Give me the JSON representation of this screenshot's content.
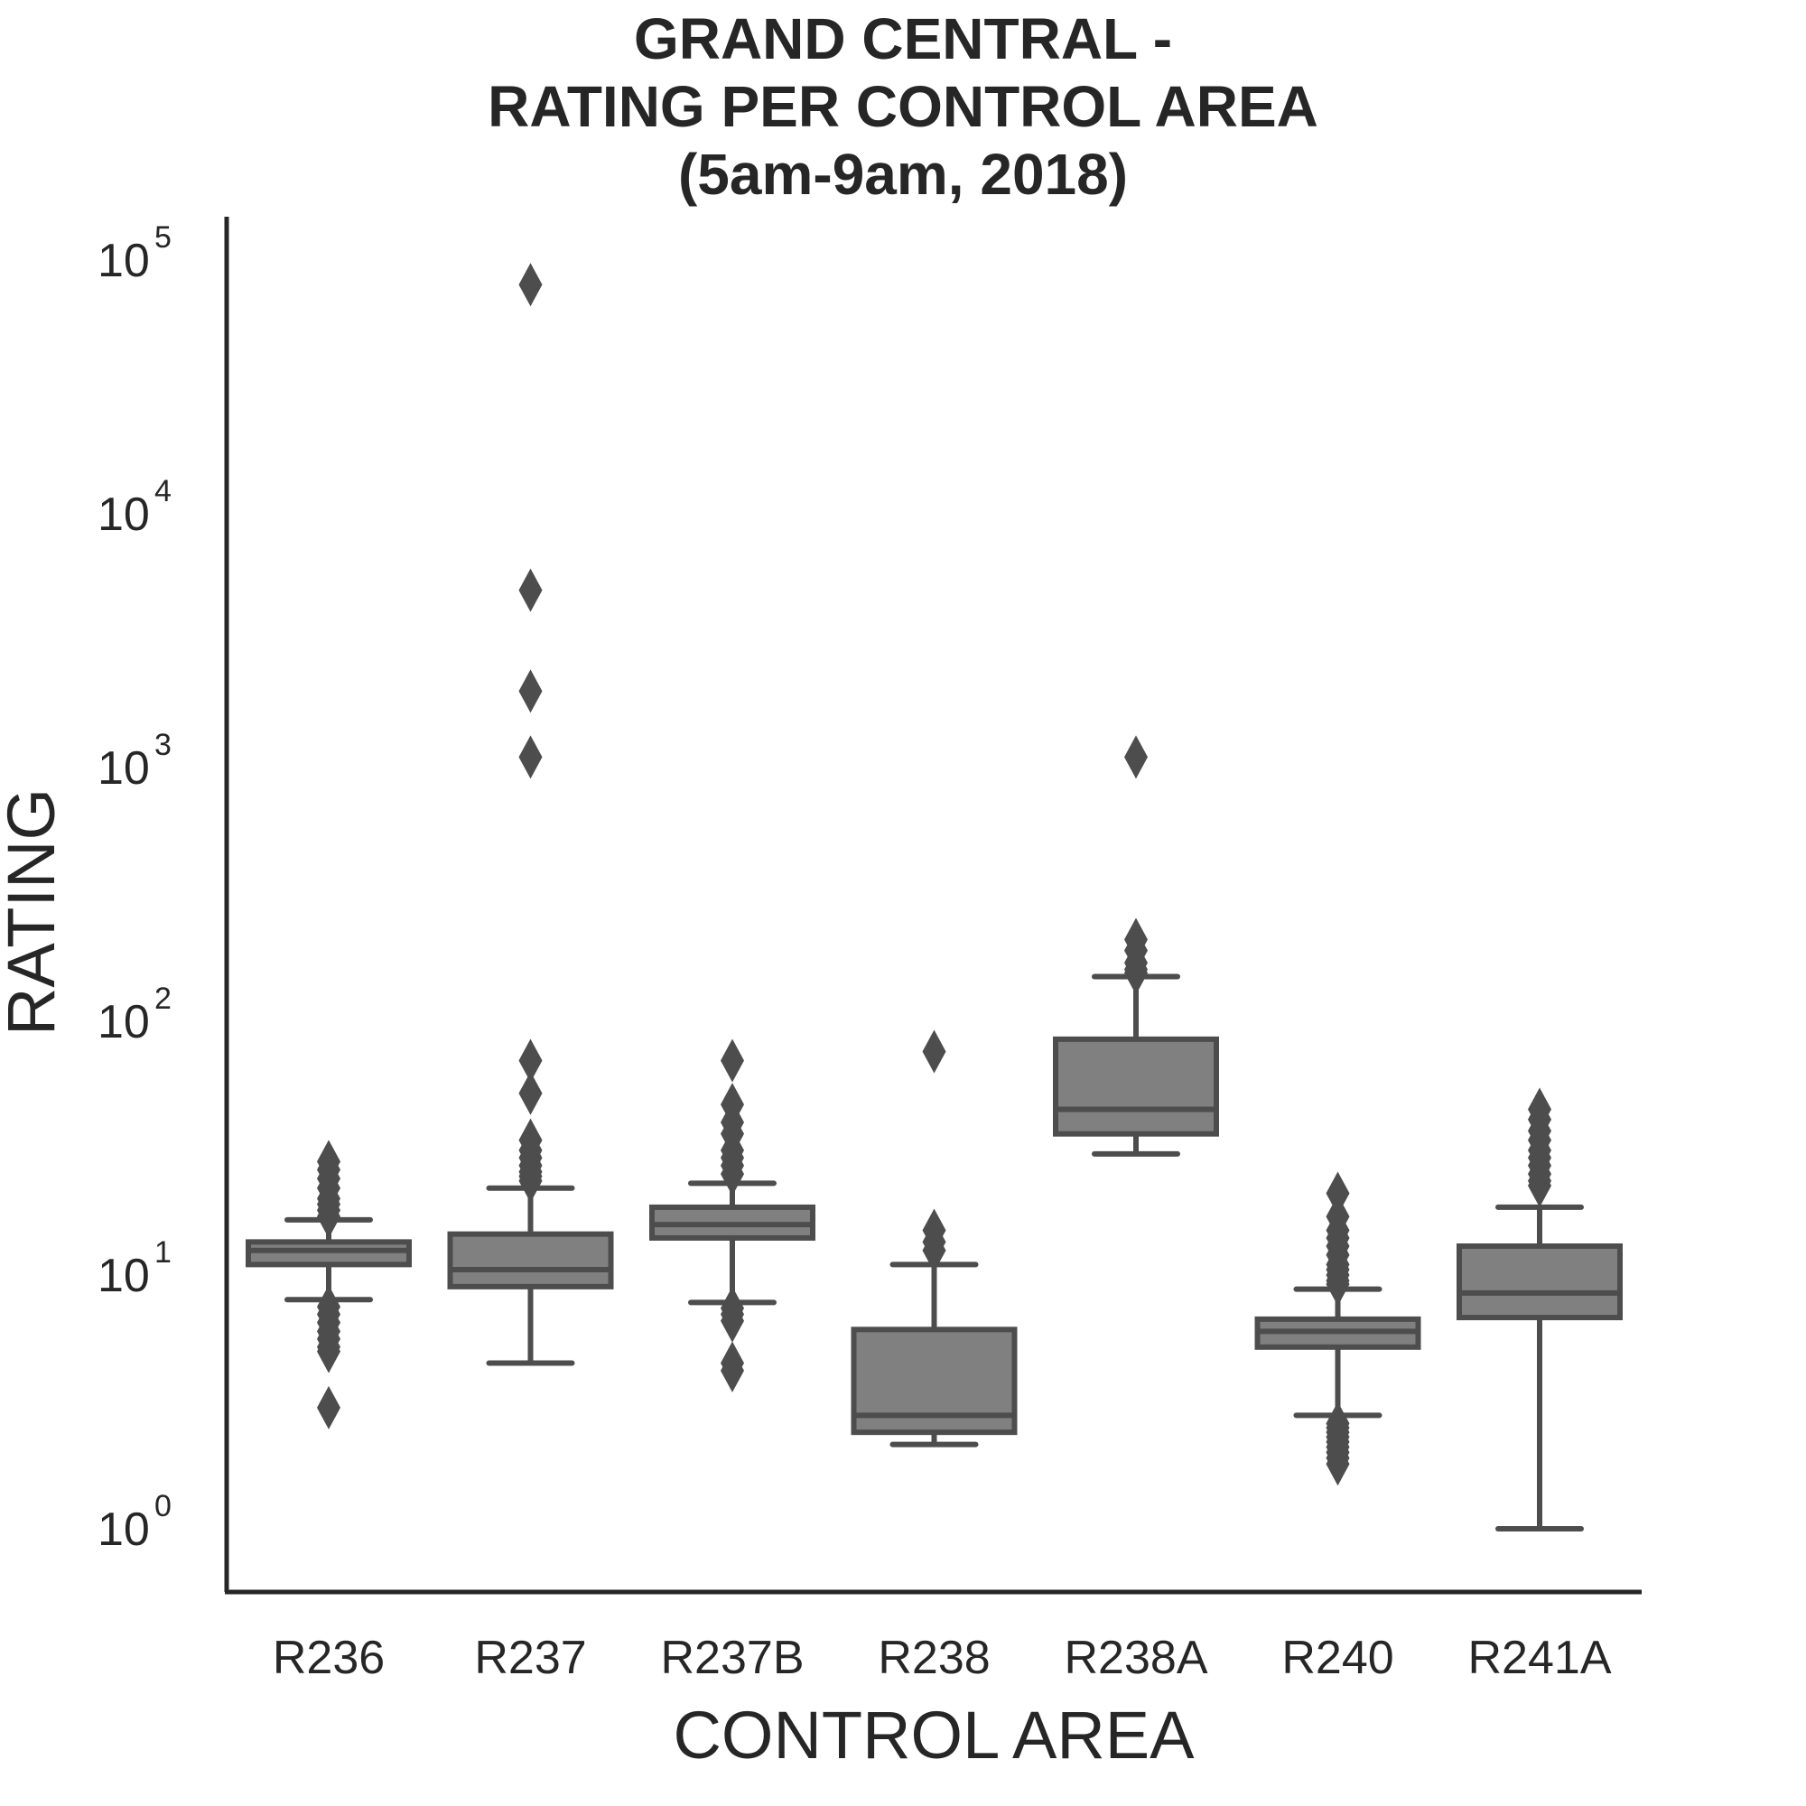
{
  "chart_data": {
    "type": "box",
    "title_lines": [
      "GRAND CENTRAL -",
      "RATING PER CONTROL AREA",
      "(5am-9am, 2018)"
    ],
    "xlabel": "CONTROL AREA",
    "ylabel": "RATING",
    "yscale": "log",
    "ylim": [
      0.55,
      140000
    ],
    "y_ticks": [
      {
        "value": 1,
        "base": "10",
        "exp": "0"
      },
      {
        "value": 10,
        "base": "10",
        "exp": "1"
      },
      {
        "value": 100,
        "base": "10",
        "exp": "2"
      },
      {
        "value": 1000,
        "base": "10",
        "exp": "3"
      },
      {
        "value": 10000,
        "base": "10",
        "exp": "4"
      },
      {
        "value": 100000,
        "base": "10",
        "exp": "5"
      }
    ],
    "grid": false,
    "box_color": "#808080",
    "line_color": "#4d4d4d",
    "categories": [
      "R236",
      "R237",
      "R237B",
      "R238",
      "R238A",
      "R240",
      "R241A"
    ],
    "boxes": [
      {
        "name": "R236",
        "whisker_low": 8.0,
        "q1": 11.0,
        "median": 12.5,
        "q3": 13.5,
        "whisker_high": 16.5,
        "outliers": [
          28,
          26,
          24,
          22,
          20,
          19,
          18,
          17,
          7.5,
          7,
          6.5,
          6,
          5.6,
          5.2,
          5.0,
          3.0
        ]
      },
      {
        "name": "R237",
        "whisker_low": 4.5,
        "q1": 9.0,
        "median": 10.5,
        "q3": 14.5,
        "whisker_high": 22,
        "outliers": [
          80000,
          5000,
          2000,
          1100,
          70,
          52,
          34,
          31,
          29,
          27,
          25.5,
          24.5,
          23.5
        ]
      },
      {
        "name": "R237B",
        "whisker_low": 7.8,
        "q1": 14.0,
        "median": 15.8,
        "q3": 18.5,
        "whisker_high": 23,
        "outliers": [
          70,
          47,
          40,
          36,
          31,
          29,
          27,
          25,
          7.4,
          7.0,
          6.6,
          4.5,
          4.2
        ]
      },
      {
        "name": "R238",
        "whisker_low": 2.15,
        "q1": 2.4,
        "median": 2.8,
        "q3": 6.1,
        "whisker_high": 11,
        "outliers": [
          76,
          15,
          13.5,
          12.5
        ]
      },
      {
        "name": "R238A",
        "whisker_low": 30,
        "q1": 36,
        "median": 45,
        "q3": 85,
        "whisker_high": 150,
        "outliers": [
          1100,
          210,
          190,
          170,
          160,
          155
        ]
      },
      {
        "name": "R240",
        "whisker_low": 2.8,
        "q1": 5.2,
        "median": 6.0,
        "q3": 6.7,
        "whisker_high": 8.8,
        "outliers": [
          21,
          17,
          15,
          14,
          13,
          12,
          11,
          10.5,
          10,
          9.5,
          9.2,
          2.6,
          2.5,
          2.4,
          2.3,
          2.2,
          2.1,
          2.0,
          1.9,
          1.8
        ]
      },
      {
        "name": "R241A",
        "whisker_low": 1.0,
        "q1": 6.8,
        "median": 8.5,
        "q3": 13.0,
        "whisker_high": 18.5,
        "outliers": [
          45,
          41,
          37,
          34,
          31,
          29,
          27,
          25,
          23.5,
          22.5
        ]
      }
    ]
  }
}
